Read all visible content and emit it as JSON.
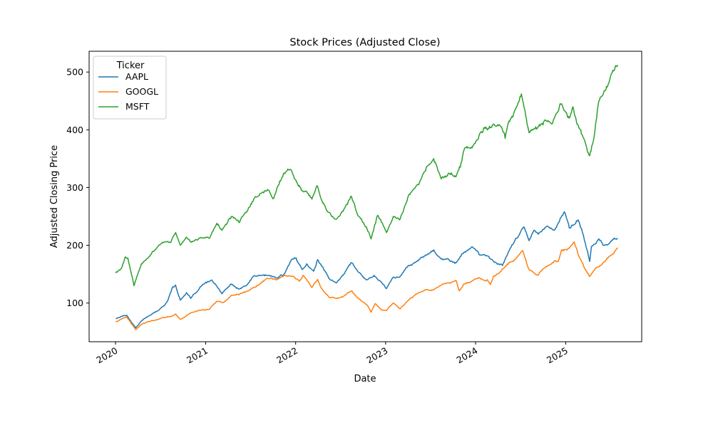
{
  "chart_data": {
    "type": "line",
    "title": "Stock Prices (Adjusted Close)",
    "xlabel": "Date",
    "ylabel": "Adjusted Closing Price",
    "xlim": [
      "2019-09-16",
      "2025-11-05"
    ],
    "ylim": [
      33,
      536
    ],
    "x_ticks": [
      "2020-01-01",
      "2021-01-01",
      "2022-01-01",
      "2023-01-01",
      "2024-01-01",
      "2025-01-01"
    ],
    "x_tick_labels": [
      "2020",
      "2021",
      "2022",
      "2023",
      "2024",
      "2025"
    ],
    "y_ticks": [
      100,
      200,
      300,
      400,
      500
    ],
    "y_tick_labels": [
      "100",
      "200",
      "300",
      "400",
      "500"
    ],
    "grid": false,
    "legend": {
      "title": "Ticker",
      "position": "top-left"
    },
    "series": [
      {
        "name": "AAPL",
        "color": "#1f77b4",
        "points": [
          [
            "2020-01-02",
            73
          ],
          [
            "2020-02-01",
            78
          ],
          [
            "2020-02-15",
            79
          ],
          [
            "2020-03-23",
            57
          ],
          [
            "2020-04-15",
            69
          ],
          [
            "2020-05-15",
            78
          ],
          [
            "2020-06-15",
            85
          ],
          [
            "2020-07-15",
            95
          ],
          [
            "2020-08-01",
            105
          ],
          [
            "2020-08-20",
            128
          ],
          [
            "2020-09-01",
            131
          ],
          [
            "2020-09-20",
            105
          ],
          [
            "2020-10-15",
            118
          ],
          [
            "2020-11-01",
            108
          ],
          [
            "2020-12-01",
            122
          ],
          [
            "2020-12-15",
            130
          ],
          [
            "2021-01-25",
            140
          ],
          [
            "2021-03-08",
            116
          ],
          [
            "2021-04-15",
            133
          ],
          [
            "2021-05-15",
            124
          ],
          [
            "2021-06-15",
            130
          ],
          [
            "2021-07-15",
            147
          ],
          [
            "2021-08-15",
            148
          ],
          [
            "2021-09-15",
            148
          ],
          [
            "2021-10-15",
            143
          ],
          [
            "2021-11-15",
            150
          ],
          [
            "2021-12-15",
            175
          ],
          [
            "2022-01-03",
            178
          ],
          [
            "2022-01-27",
            158
          ],
          [
            "2022-02-15",
            168
          ],
          [
            "2022-03-15",
            155
          ],
          [
            "2022-03-31",
            175
          ],
          [
            "2022-04-15",
            165
          ],
          [
            "2022-05-15",
            143
          ],
          [
            "2022-06-15",
            135
          ],
          [
            "2022-07-15",
            150
          ],
          [
            "2022-08-15",
            170
          ],
          [
            "2022-09-15",
            153
          ],
          [
            "2022-10-15",
            140
          ],
          [
            "2022-11-15",
            148
          ],
          [
            "2022-12-15",
            136
          ],
          [
            "2023-01-04",
            125
          ],
          [
            "2023-02-01",
            145
          ],
          [
            "2023-03-01",
            146
          ],
          [
            "2023-04-01",
            164
          ],
          [
            "2023-05-01",
            170
          ],
          [
            "2023-06-01",
            180
          ],
          [
            "2023-07-15",
            192
          ],
          [
            "2023-08-15",
            176
          ],
          [
            "2023-09-15",
            175
          ],
          [
            "2023-10-15",
            170
          ],
          [
            "2023-11-15",
            188
          ],
          [
            "2023-12-15",
            197
          ],
          [
            "2024-01-15",
            184
          ],
          [
            "2024-02-15",
            182
          ],
          [
            "2024-03-15",
            172
          ],
          [
            "2024-04-19",
            165
          ],
          [
            "2024-05-15",
            190
          ],
          [
            "2024-06-15",
            212
          ],
          [
            "2024-07-15",
            232
          ],
          [
            "2024-08-05",
            208
          ],
          [
            "2024-08-25",
            226
          ],
          [
            "2024-09-15",
            222
          ],
          [
            "2024-10-15",
            233
          ],
          [
            "2024-11-15",
            226
          ],
          [
            "2024-12-26",
            258
          ],
          [
            "2025-01-15",
            230
          ],
          [
            "2025-02-01",
            235
          ],
          [
            "2025-02-20",
            244
          ],
          [
            "2025-03-15",
            214
          ],
          [
            "2025-04-08",
            172
          ],
          [
            "2025-04-15",
            198
          ],
          [
            "2025-05-15",
            211
          ],
          [
            "2025-06-01",
            200
          ],
          [
            "2025-06-20",
            201
          ],
          [
            "2025-07-10",
            210
          ],
          [
            "2025-07-31",
            212
          ]
        ]
      },
      {
        "name": "GOOGL",
        "color": "#ff7f0e",
        "points": [
          [
            "2020-01-02",
            68
          ],
          [
            "2020-02-15",
            76
          ],
          [
            "2020-03-23",
            54
          ],
          [
            "2020-04-15",
            63
          ],
          [
            "2020-05-15",
            68
          ],
          [
            "2020-06-15",
            71
          ],
          [
            "2020-07-15",
            75
          ],
          [
            "2020-08-15",
            77
          ],
          [
            "2020-09-01",
            81
          ],
          [
            "2020-09-20",
            72
          ],
          [
            "2020-10-15",
            78
          ],
          [
            "2020-11-01",
            83
          ],
          [
            "2020-12-15",
            88
          ],
          [
            "2021-01-15",
            89
          ],
          [
            "2021-02-15",
            103
          ],
          [
            "2021-03-15",
            101
          ],
          [
            "2021-04-15",
            113
          ],
          [
            "2021-05-15",
            114
          ],
          [
            "2021-06-15",
            120
          ],
          [
            "2021-07-15",
            127
          ],
          [
            "2021-08-15",
            136
          ],
          [
            "2021-09-15",
            142
          ],
          [
            "2021-10-15",
            140
          ],
          [
            "2021-11-15",
            148
          ],
          [
            "2021-12-15",
            146
          ],
          [
            "2022-01-15",
            138
          ],
          [
            "2022-02-01",
            148
          ],
          [
            "2022-03-08",
            127
          ],
          [
            "2022-03-31",
            141
          ],
          [
            "2022-04-15",
            126
          ],
          [
            "2022-05-15",
            111
          ],
          [
            "2022-06-15",
            108
          ],
          [
            "2022-07-15",
            112
          ],
          [
            "2022-08-15",
            121
          ],
          [
            "2022-09-15",
            107
          ],
          [
            "2022-10-15",
            98
          ],
          [
            "2022-11-03",
            84
          ],
          [
            "2022-11-20",
            99
          ],
          [
            "2022-12-15",
            88
          ],
          [
            "2023-01-05",
            87
          ],
          [
            "2023-02-01",
            100
          ],
          [
            "2023-03-01",
            90
          ],
          [
            "2023-04-01",
            104
          ],
          [
            "2023-05-15",
            118
          ],
          [
            "2023-06-15",
            123
          ],
          [
            "2023-07-15",
            123
          ],
          [
            "2023-08-15",
            131
          ],
          [
            "2023-09-15",
            135
          ],
          [
            "2023-10-15",
            138
          ],
          [
            "2023-10-27",
            121
          ],
          [
            "2023-11-15",
            133
          ],
          [
            "2023-12-15",
            137
          ],
          [
            "2024-01-15",
            144
          ],
          [
            "2024-02-15",
            140
          ],
          [
            "2024-03-01",
            132
          ],
          [
            "2024-03-15",
            147
          ],
          [
            "2024-04-15",
            156
          ],
          [
            "2024-05-15",
            170
          ],
          [
            "2024-06-15",
            178
          ],
          [
            "2024-07-10",
            191
          ],
          [
            "2024-08-05",
            158
          ],
          [
            "2024-09-10",
            148
          ],
          [
            "2024-10-15",
            163
          ],
          [
            "2024-11-15",
            173
          ],
          [
            "2024-12-01",
            172
          ],
          [
            "2024-12-15",
            192
          ],
          [
            "2025-01-15",
            195
          ],
          [
            "2025-02-04",
            206
          ],
          [
            "2025-02-20",
            184
          ],
          [
            "2025-03-15",
            163
          ],
          [
            "2025-04-07",
            146
          ],
          [
            "2025-05-01",
            160
          ],
          [
            "2025-05-20",
            165
          ],
          [
            "2025-06-15",
            175
          ],
          [
            "2025-07-10",
            185
          ],
          [
            "2025-07-31",
            196
          ]
        ]
      },
      {
        "name": "MSFT",
        "color": "#2ca02c",
        "points": [
          [
            "2020-01-02",
            152
          ],
          [
            "2020-01-25",
            160
          ],
          [
            "2020-02-10",
            180
          ],
          [
            "2020-02-20",
            178
          ],
          [
            "2020-03-16",
            130
          ],
          [
            "2020-04-15",
            168
          ],
          [
            "2020-05-15",
            180
          ],
          [
            "2020-06-15",
            195
          ],
          [
            "2020-07-15",
            205
          ],
          [
            "2020-08-15",
            208
          ],
          [
            "2020-09-01",
            222
          ],
          [
            "2020-09-20",
            200
          ],
          [
            "2020-10-15",
            214
          ],
          [
            "2020-11-01",
            206
          ],
          [
            "2020-12-15",
            213
          ],
          [
            "2021-01-15",
            212
          ],
          [
            "2021-02-15",
            238
          ],
          [
            "2021-03-08",
            226
          ],
          [
            "2021-04-15",
            250
          ],
          [
            "2021-05-15",
            240
          ],
          [
            "2021-06-15",
            257
          ],
          [
            "2021-07-15",
            280
          ],
          [
            "2021-08-15",
            290
          ],
          [
            "2021-09-15",
            295
          ],
          [
            "2021-10-04",
            281
          ],
          [
            "2021-10-20",
            302
          ],
          [
            "2021-11-15",
            325
          ],
          [
            "2021-12-15",
            330
          ],
          [
            "2022-01-10",
            305
          ],
          [
            "2022-01-27",
            295
          ],
          [
            "2022-02-15",
            293
          ],
          [
            "2022-03-08",
            280
          ],
          [
            "2022-03-31",
            302
          ],
          [
            "2022-04-15",
            280
          ],
          [
            "2022-05-15",
            257
          ],
          [
            "2022-06-15",
            245
          ],
          [
            "2022-07-15",
            262
          ],
          [
            "2022-08-15",
            285
          ],
          [
            "2022-09-15",
            250
          ],
          [
            "2022-10-15",
            232
          ],
          [
            "2022-11-03",
            211
          ],
          [
            "2022-11-30",
            252
          ],
          [
            "2022-12-15",
            240
          ],
          [
            "2023-01-05",
            222
          ],
          [
            "2023-02-01",
            250
          ],
          [
            "2023-03-01",
            245
          ],
          [
            "2023-04-01",
            283
          ],
          [
            "2023-05-15",
            305
          ],
          [
            "2023-06-15",
            335
          ],
          [
            "2023-07-15",
            350
          ],
          [
            "2023-08-15",
            315
          ],
          [
            "2023-09-15",
            325
          ],
          [
            "2023-10-15",
            320
          ],
          [
            "2023-10-31",
            335
          ],
          [
            "2023-11-15",
            365
          ],
          [
            "2023-12-15",
            370
          ],
          [
            "2024-01-15",
            390
          ],
          [
            "2024-02-15",
            402
          ],
          [
            "2024-03-15",
            410
          ],
          [
            "2024-04-15",
            405
          ],
          [
            "2024-04-30",
            385
          ],
          [
            "2024-05-15",
            415
          ],
          [
            "2024-06-15",
            440
          ],
          [
            "2024-07-05",
            462
          ],
          [
            "2024-07-25",
            420
          ],
          [
            "2024-08-05",
            395
          ],
          [
            "2024-09-10",
            405
          ],
          [
            "2024-10-15",
            415
          ],
          [
            "2024-11-05",
            410
          ],
          [
            "2024-12-15",
            445
          ],
          [
            "2025-01-15",
            420
          ],
          [
            "2025-01-30",
            440
          ],
          [
            "2025-02-15",
            410
          ],
          [
            "2025-03-15",
            385
          ],
          [
            "2025-04-08",
            355
          ],
          [
            "2025-04-25",
            385
          ],
          [
            "2025-05-15",
            450
          ],
          [
            "2025-06-15",
            475
          ],
          [
            "2025-07-05",
            497
          ],
          [
            "2025-07-31",
            512
          ]
        ]
      }
    ]
  }
}
